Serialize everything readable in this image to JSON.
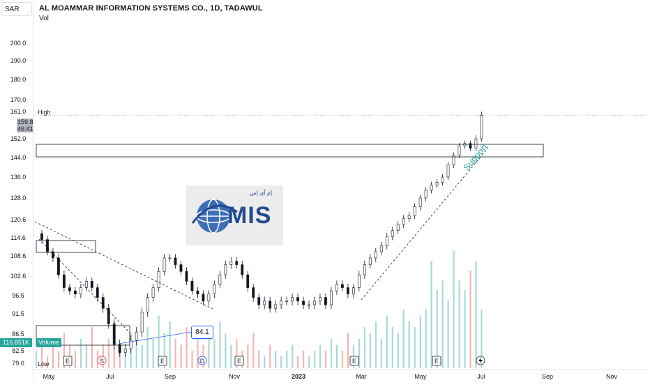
{
  "header": {
    "currency": "SAR",
    "title": "AL MOAMMAR INFORMATION SYSTEMS CO., 1D, TADAWUL",
    "indicator": "Vol"
  },
  "logo": {
    "text": "MIS",
    "arabic": "إم آي إس"
  },
  "annotations": {
    "support": "Support",
    "callout_value": "84.1",
    "high_label": "High",
    "low_label": "Low",
    "current_price": "159.8",
    "countdown": "46:41",
    "volume_value": "116.851K",
    "volume_name": "Volume"
  },
  "events": [
    "E",
    "S",
    "E",
    "D",
    "E",
    "E",
    "E"
  ],
  "colors": {
    "up": "#26a69a",
    "down": "#ef5350",
    "line": "#131722",
    "grid": "#f0f3fa"
  },
  "chart_data": {
    "type": "candlestick",
    "title": "AL MOAMMAR INFORMATION SYSTEMS CO., 1D, TADAWUL",
    "y_ticks": [
      "200.0",
      "190.0",
      "180.0",
      "170.0",
      "161.0",
      "152.0",
      "144.0",
      "136.0",
      "128.0",
      "120.6",
      "114.6",
      "108.6",
      "102.6",
      "96.5",
      "91.5",
      "86.5",
      "82.5",
      "79.0"
    ],
    "x_ticks": [
      "May",
      "Jul",
      "Sep",
      "Nov",
      "2023",
      "Mar",
      "May",
      "Jul",
      "Sep",
      "Nov"
    ],
    "ylim": [
      79.0,
      200.0
    ],
    "high": 161.0,
    "low": 79.0,
    "last": 159.8,
    "price_path": [
      [
        0,
        116
      ],
      [
        3,
        114
      ],
      [
        6,
        110
      ],
      [
        9,
        108
      ],
      [
        12,
        103
      ],
      [
        15,
        99
      ],
      [
        18,
        98
      ],
      [
        21,
        97
      ],
      [
        24,
        99
      ],
      [
        27,
        101
      ],
      [
        30,
        99
      ],
      [
        33,
        96
      ],
      [
        36,
        93
      ],
      [
        39,
        89
      ],
      [
        42,
        84
      ],
      [
        45,
        82
      ],
      [
        48,
        83
      ],
      [
        51,
        85
      ],
      [
        54,
        87
      ],
      [
        57,
        92
      ],
      [
        60,
        96
      ],
      [
        63,
        99
      ],
      [
        66,
        104
      ],
      [
        69,
        108
      ],
      [
        72,
        108
      ],
      [
        75,
        106
      ],
      [
        78,
        104
      ],
      [
        81,
        101
      ],
      [
        84,
        98
      ],
      [
        87,
        97
      ],
      [
        90,
        95
      ],
      [
        93,
        97
      ],
      [
        96,
        100
      ],
      [
        99,
        103
      ],
      [
        102,
        106
      ],
      [
        105,
        107
      ],
      [
        108,
        106
      ],
      [
        111,
        103
      ],
      [
        114,
        99
      ],
      [
        117,
        96
      ],
      [
        120,
        94
      ],
      [
        123,
        95
      ],
      [
        126,
        93
      ],
      [
        129,
        94
      ],
      [
        132,
        95
      ],
      [
        135,
        95
      ],
      [
        138,
        96
      ],
      [
        141,
        95
      ],
      [
        144,
        94
      ],
      [
        147,
        94
      ],
      [
        150,
        95
      ],
      [
        153,
        96
      ],
      [
        156,
        94
      ],
      [
        159,
        98
      ],
      [
        162,
        100
      ],
      [
        165,
        99
      ],
      [
        168,
        97
      ],
      [
        171,
        99
      ],
      [
        174,
        103
      ],
      [
        177,
        106
      ],
      [
        180,
        108
      ],
      [
        183,
        110
      ],
      [
        186,
        112
      ],
      [
        189,
        115
      ],
      [
        192,
        117
      ],
      [
        195,
        119
      ],
      [
        198,
        121
      ],
      [
        201,
        122
      ],
      [
        204,
        125
      ],
      [
        207,
        128
      ],
      [
        210,
        131
      ],
      [
        213,
        133
      ],
      [
        216,
        134
      ],
      [
        219,
        136
      ],
      [
        222,
        141
      ],
      [
        225,
        145
      ],
      [
        228,
        149
      ],
      [
        231,
        150
      ],
      [
        234,
        148
      ],
      [
        237,
        152
      ],
      [
        240,
        159.8
      ]
    ],
    "volume": [
      0.3,
      0.4,
      0.2,
      0.5,
      0.3,
      0.6,
      0.4,
      0.3,
      0.5,
      0.4,
      0.7,
      0.3,
      0.4,
      0.5,
      0.8,
      0.4,
      0.3,
      0.6,
      0.5,
      0.4,
      0.7,
      0.5,
      0.9,
      0.6,
      0.8,
      0.5,
      0.4,
      0.7,
      0.3,
      0.5,
      0.4,
      0.6,
      0.5,
      0.8,
      0.6,
      0.4,
      0.5,
      0.3,
      0.4,
      0.6,
      0.3,
      0.2,
      0.4,
      0.3,
      0.2,
      0.3,
      0.4,
      0.2,
      0.3,
      0.2,
      0.3,
      0.4,
      0.3,
      0.5,
      0.4,
      0.3,
      0.6,
      0.4,
      0.5,
      0.7,
      0.6,
      0.8,
      0.5,
      0.9,
      0.7,
      0.6,
      1.0,
      0.8,
      0.7,
      0.9,
      0.6,
      1.1,
      0.8,
      0.9,
      0.7,
      1.2,
      0.9,
      0.8,
      1.0,
      1.1,
      0.6
    ]
  }
}
